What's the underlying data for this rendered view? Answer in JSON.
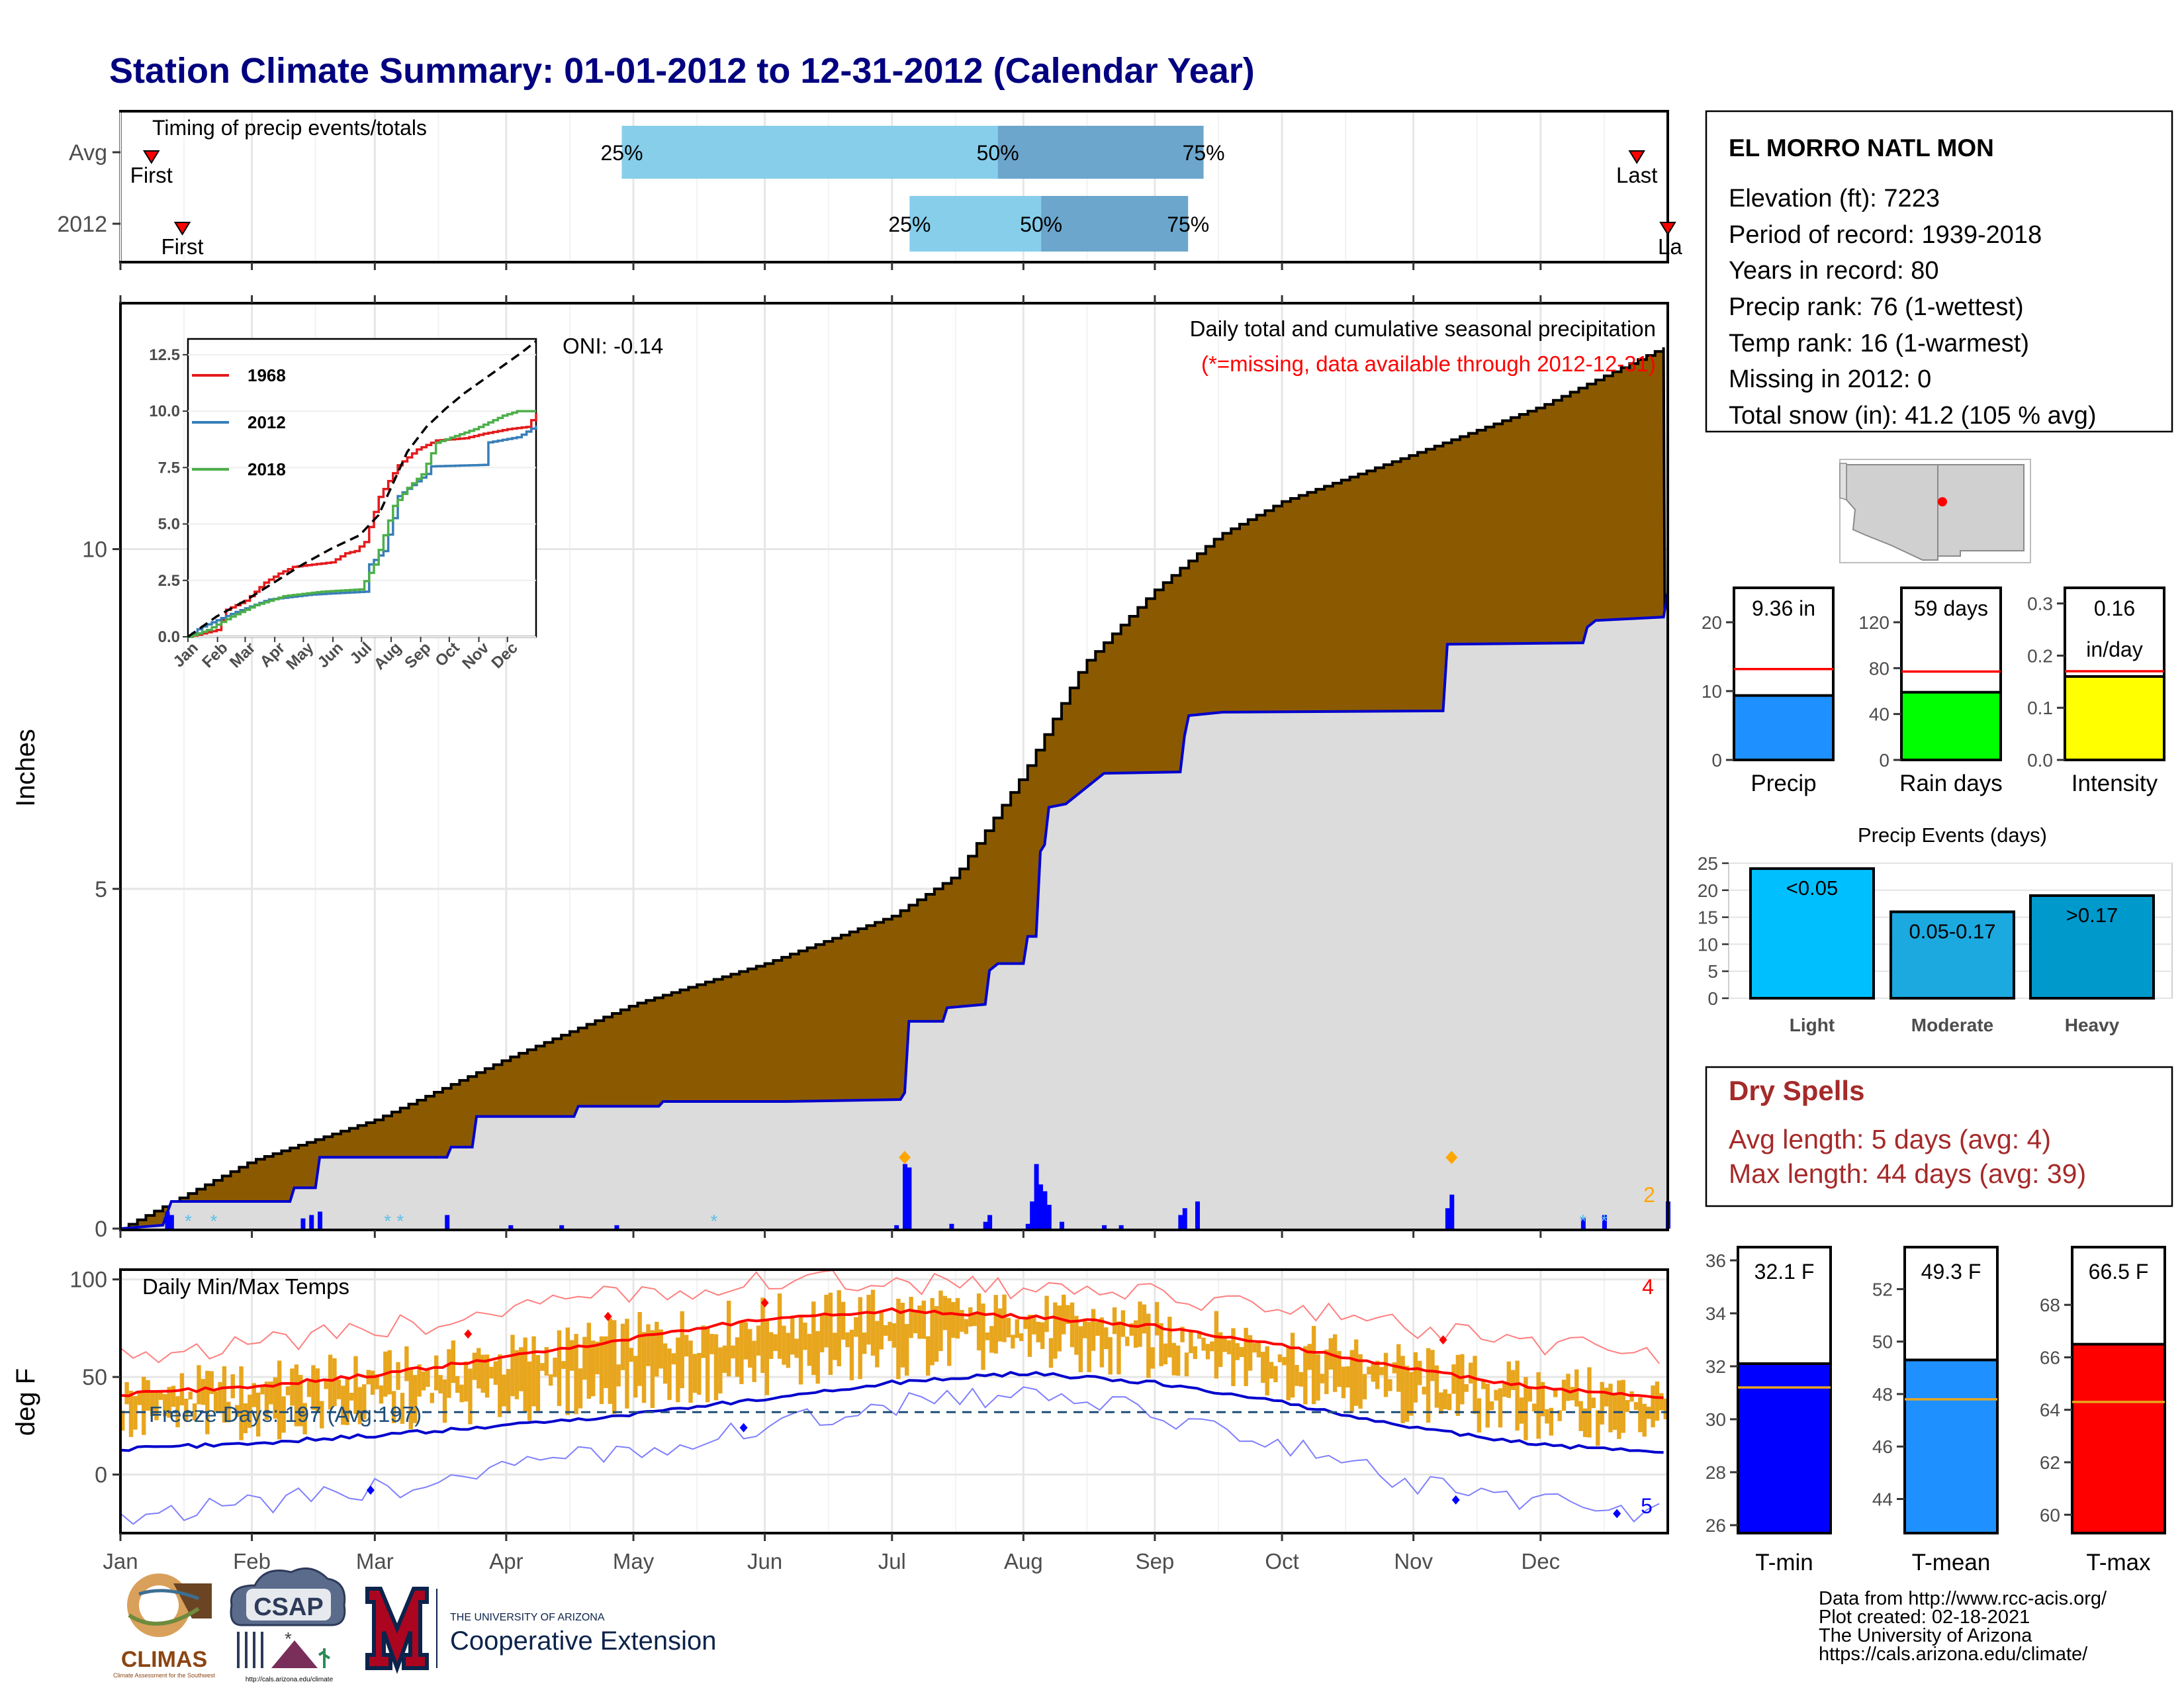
{
  "page": {
    "title": "Station Climate Summary: 01-01-2012 to 12-31-2012 (Calendar Year)",
    "months": [
      "Jan",
      "Feb",
      "Mar",
      "Apr",
      "May",
      "Jun",
      "Jul",
      "Aug",
      "Sep",
      "Oct",
      "Nov",
      "Dec"
    ],
    "colors": {
      "title": "#000080",
      "precip_fill": "#8B5A00",
      "grey_fill": "#DCDCDC",
      "obs_line": "#0000CD",
      "temp_band": "#E8A61E",
      "dry_text": "#A52A2A"
    }
  },
  "station": {
    "name": "EL MORRO NATL MON",
    "lines": [
      "Elevation (ft): 7223",
      "Period of record: 1939-2018",
      "Years in record: 80",
      "Precip rank: 76 (1-wettest)",
      "Temp rank: 16 (1-warmest)",
      "Missing in 2012: 0",
      "Total snow (in): 41.2 (105 % avg)"
    ]
  },
  "dry_spells": {
    "title": "Dry Spells",
    "avg_line": "Avg length: 5 days (avg: 4)",
    "max_line": "Max length: 44 days (avg: 39)"
  },
  "footer": {
    "lines": [
      "Data from http://www.rcc-acis.org/",
      "Plot created: 02-18-2021",
      "The University of Arizona",
      "https://cals.arizona.edu/climate/"
    ],
    "logos": {
      "climas": "CLIMAS",
      "climas_sub": "Climate Assessment for the Southwest",
      "csap": "CSAP",
      "csap_url": "http://cals.arizona.edu/climate",
      "ua_small": "THE UNIVERSITY OF ARIZONA",
      "ua_big": "Cooperative Extension"
    }
  },
  "chart_data": [
    {
      "id": "timing",
      "type": "bar",
      "title": "Timing of precip events/totals",
      "rows": [
        {
          "label": "Avg",
          "p25": 0.324,
          "p50": 0.567,
          "p75": 0.7,
          "first": 0.02,
          "first_label": "First",
          "last": 0.98,
          "last_label": "Last"
        },
        {
          "label": "2012",
          "p25": 0.51,
          "p50": 0.595,
          "p75": 0.69,
          "first": 0.04,
          "first_label": "First",
          "last": 1.0,
          "last_label": "La"
        }
      ],
      "pct_labels": [
        "25%",
        "50%",
        "75%"
      ]
    },
    {
      "id": "precip",
      "type": "area",
      "title": "Daily total and cumulative seasonal precipitation",
      "note": "(*=missing, data available through 2012-12-31)",
      "oni": "ONI: -0.14",
      "ylabel": "Inches",
      "ylim": [
        0,
        13.6
      ],
      "yticks": [
        0,
        5,
        10
      ],
      "avg_cumulative": [
        [
          0,
          0
        ],
        [
          31,
          1.0
        ],
        [
          60,
          1.6
        ],
        [
          91,
          2.5
        ],
        [
          121,
          3.3
        ],
        [
          152,
          3.9
        ],
        [
          182,
          4.6
        ],
        [
          197,
          5.2
        ],
        [
          213,
          6.7
        ],
        [
          227,
          8.3
        ],
        [
          244,
          9.4
        ],
        [
          259,
          10.2
        ],
        [
          274,
          10.7
        ],
        [
          305,
          11.4
        ],
        [
          335,
          12.1
        ],
        [
          365,
          13.0
        ]
      ],
      "obs_cumulative": [
        [
          0,
          0
        ],
        [
          10,
          0.05
        ],
        [
          12,
          0.4
        ],
        [
          40,
          0.4
        ],
        [
          41,
          0.6
        ],
        [
          46,
          0.6
        ],
        [
          47,
          1.05
        ],
        [
          77,
          1.05
        ],
        [
          78,
          1.2
        ],
        [
          83,
          1.2
        ],
        [
          84,
          1.65
        ],
        [
          107,
          1.65
        ],
        [
          108,
          1.8
        ],
        [
          127,
          1.8
        ],
        [
          128,
          1.87
        ],
        [
          157,
          1.87
        ],
        [
          184,
          1.9
        ],
        [
          185,
          2.0
        ],
        [
          186,
          3.05
        ],
        [
          194,
          3.05
        ],
        [
          195,
          3.25
        ],
        [
          204,
          3.3
        ],
        [
          205,
          3.8
        ],
        [
          207,
          3.9
        ],
        [
          213,
          3.9
        ],
        [
          214,
          4.3
        ],
        [
          216,
          4.3
        ],
        [
          217,
          5.55
        ],
        [
          218,
          5.65
        ],
        [
          219,
          6.2
        ],
        [
          223,
          6.25
        ],
        [
          232,
          6.7
        ],
        [
          250,
          6.72
        ],
        [
          251,
          7.25
        ],
        [
          252,
          7.55
        ],
        [
          260,
          7.6
        ],
        [
          312,
          7.62
        ],
        [
          313,
          8.6
        ],
        [
          345,
          8.62
        ],
        [
          346,
          8.85
        ],
        [
          348,
          8.95
        ],
        [
          364,
          9.0
        ],
        [
          365,
          9.36
        ]
      ],
      "daily_bars": [
        [
          11,
          0.25
        ],
        [
          12,
          0.2
        ],
        [
          43,
          0.15
        ],
        [
          45,
          0.2
        ],
        [
          47,
          0.25
        ],
        [
          77,
          0.2
        ],
        [
          92,
          0.05
        ],
        [
          104,
          0.05
        ],
        [
          117,
          0.05
        ],
        [
          183,
          0.05
        ],
        [
          185,
          0.95
        ],
        [
          186,
          0.9
        ],
        [
          196,
          0.07
        ],
        [
          204,
          0.1
        ],
        [
          205,
          0.2
        ],
        [
          214,
          0.07
        ],
        [
          215,
          0.4
        ],
        [
          216,
          0.95
        ],
        [
          217,
          0.65
        ],
        [
          218,
          0.55
        ],
        [
          219,
          0.35
        ],
        [
          222,
          0.1
        ],
        [
          232,
          0.05
        ],
        [
          236,
          0.05
        ],
        [
          250,
          0.2
        ],
        [
          251,
          0.3
        ],
        [
          254,
          0.4
        ],
        [
          313,
          0.3
        ],
        [
          314,
          0.5
        ],
        [
          345,
          0.15
        ],
        [
          350,
          0.2
        ],
        [
          365,
          0.4
        ]
      ],
      "markers": [
        {
          "day": 185,
          "label": "",
          "color": "#FFA500"
        },
        {
          "day": 314,
          "label": "",
          "color": "#FFA500"
        }
      ],
      "count_label": "2"
    },
    {
      "id": "inset",
      "type": "line",
      "xlabels": [
        "Jan",
        "Feb",
        "Mar",
        "Apr",
        "May",
        "Jun",
        "Jul",
        "Aug",
        "Sep",
        "Oct",
        "Nov",
        "Dec"
      ],
      "yticks": [
        "0.0",
        "2.5",
        "5.0",
        "7.5",
        "10.0",
        "12.5"
      ],
      "ylim": [
        0,
        13.2
      ],
      "series": [
        {
          "name": "1968",
          "color": "#E41A1C",
          "points": [
            [
              0,
              0
            ],
            [
              30,
              0.3
            ],
            [
              40,
              1.2
            ],
            [
              60,
              1.6
            ],
            [
              80,
              2.4
            ],
            [
              95,
              2.8
            ],
            [
              110,
              3.1
            ],
            [
              130,
              3.2
            ],
            [
              150,
              3.3
            ],
            [
              165,
              3.7
            ],
            [
              175,
              3.8
            ],
            [
              185,
              4.2
            ],
            [
              200,
              6.2
            ],
            [
              220,
              7.6
            ],
            [
              240,
              8.3
            ],
            [
              260,
              8.7
            ],
            [
              290,
              8.8
            ],
            [
              310,
              9.0
            ],
            [
              335,
              9.2
            ],
            [
              355,
              9.3
            ],
            [
              365,
              9.9
            ]
          ]
        },
        {
          "name": "2012",
          "color": "#377EB8",
          "points": [
            [
              0,
              0
            ],
            [
              12,
              0.4
            ],
            [
              47,
              1.05
            ],
            [
              84,
              1.65
            ],
            [
              128,
              1.87
            ],
            [
              185,
              2.0
            ],
            [
              186,
              3.05
            ],
            [
              205,
              3.8
            ],
            [
              217,
              5.55
            ],
            [
              219,
              6.2
            ],
            [
              251,
              7.25
            ],
            [
              252,
              7.55
            ],
            [
              312,
              7.62
            ],
            [
              313,
              8.6
            ],
            [
              346,
              8.85
            ],
            [
              365,
              9.36
            ]
          ]
        },
        {
          "name": "2018",
          "color": "#4DAF4A",
          "points": [
            [
              0,
              0
            ],
            [
              20,
              0.3
            ],
            [
              45,
              0.9
            ],
            [
              70,
              1.4
            ],
            [
              100,
              1.8
            ],
            [
              140,
              2.0
            ],
            [
              180,
              2.1
            ],
            [
              195,
              3.2
            ],
            [
              215,
              5.8
            ],
            [
              230,
              6.6
            ],
            [
              245,
              7.2
            ],
            [
              260,
              8.6
            ],
            [
              280,
              8.9
            ],
            [
              300,
              9.2
            ],
            [
              330,
              9.8
            ],
            [
              345,
              10.0
            ],
            [
              365,
              10.0
            ]
          ]
        },
        {
          "name": "",
          "color": "#000000",
          "points": [
            [
              0,
              0
            ],
            [
              30,
              0.9
            ],
            [
              60,
              1.6
            ],
            [
              90,
              2.4
            ],
            [
              120,
              3.2
            ],
            [
              150,
              3.9
            ],
            [
              180,
              4.5
            ],
            [
              200,
              5.4
            ],
            [
              215,
              6.8
            ],
            [
              230,
              8.2
            ],
            [
              250,
              9.3
            ],
            [
              270,
              10.1
            ],
            [
              290,
              10.8
            ],
            [
              310,
              11.4
            ],
            [
              330,
              12.0
            ],
            [
              350,
              12.6
            ],
            [
              365,
              13.1
            ]
          ]
        }
      ]
    },
    {
      "id": "temps",
      "type": "line",
      "title": "Daily Min/Max Temps",
      "ylabel": "deg F",
      "ylim": [
        -30,
        105
      ],
      "yticks": [
        0,
        50,
        100
      ],
      "freeze_label": "Freeze Days: 197 (Avg:197)",
      "freeze_temp": 32,
      "avg_max": [
        [
          0,
          41
        ],
        [
          30,
          45
        ],
        [
          60,
          51
        ],
        [
          91,
          60
        ],
        [
          121,
          70
        ],
        [
          152,
          80
        ],
        [
          182,
          84
        ],
        [
          213,
          81
        ],
        [
          244,
          76
        ],
        [
          274,
          66
        ],
        [
          305,
          54
        ],
        [
          335,
          44
        ],
        [
          365,
          40
        ]
      ],
      "avg_min": [
        [
          0,
          13
        ],
        [
          30,
          16
        ],
        [
          60,
          20
        ],
        [
          91,
          25
        ],
        [
          121,
          31
        ],
        [
          152,
          39
        ],
        [
          182,
          47
        ],
        [
          213,
          52
        ],
        [
          244,
          47
        ],
        [
          274,
          37
        ],
        [
          305,
          24
        ],
        [
          335,
          15
        ],
        [
          365,
          12
        ]
      ],
      "rec_max": [
        [
          0,
          62
        ],
        [
          30,
          66
        ],
        [
          60,
          74
        ],
        [
          91,
          84
        ],
        [
          121,
          93
        ],
        [
          152,
          99
        ],
        [
          182,
          99
        ],
        [
          213,
          95
        ],
        [
          244,
          92
        ],
        [
          274,
          87
        ],
        [
          305,
          75
        ],
        [
          335,
          66
        ],
        [
          365,
          62
        ]
      ],
      "rec_min": [
        [
          0,
          -20
        ],
        [
          30,
          -16
        ],
        [
          60,
          -8
        ],
        [
          91,
          3
        ],
        [
          121,
          13
        ],
        [
          152,
          24
        ],
        [
          182,
          36
        ],
        [
          213,
          41
        ],
        [
          244,
          32
        ],
        [
          274,
          16
        ],
        [
          305,
          -5
        ],
        [
          335,
          -15
        ],
        [
          365,
          -20
        ]
      ],
      "max_count_label": "4",
      "min_count_label": "5"
    },
    {
      "id": "precip_bars",
      "type": "bar",
      "panels": [
        {
          "label": "Precip",
          "value_label": "9.36 in",
          "value": 9.36,
          "avg": 13.2,
          "ylim": [
            0,
            25
          ],
          "ticks": [
            0,
            10,
            20
          ],
          "color": "#1E90FF"
        },
        {
          "label": "Rain days",
          "value_label": "59 days",
          "value": 59,
          "avg": 77,
          "ylim": [
            0,
            150
          ],
          "ticks": [
            0,
            40,
            80,
            120
          ],
          "color": "#00FF00"
        },
        {
          "label": "Intensity",
          "value_label": "0.16",
          "value_label2": "in/day",
          "value": 0.16,
          "avg": 0.17,
          "ylim": [
            0,
            0.33
          ],
          "ticks": [
            "0.0",
            "0.1",
            "0.2",
            "0.3"
          ],
          "color": "#FFFF00"
        }
      ]
    },
    {
      "id": "events",
      "type": "bar",
      "title": "Precip Events (days)",
      "categories": [
        "Light",
        "Moderate",
        "Heavy"
      ],
      "labels": [
        "<0.05",
        "0.05-0.17",
        ">0.17"
      ],
      "values": [
        24,
        16,
        19
      ],
      "ylim": [
        0,
        25
      ],
      "yticks": [
        0,
        5,
        10,
        15,
        20,
        25
      ],
      "colors": [
        "#00BFFF",
        "#1CA9E0",
        "#0099CC"
      ]
    },
    {
      "id": "temp_bars",
      "type": "bar",
      "panels": [
        {
          "label": "T-min",
          "value_label": "32.1 F",
          "value": 32.1,
          "avg": 31.2,
          "ylim": [
            25.7,
            36.5
          ],
          "ticks": [
            26,
            28,
            30,
            32,
            34,
            36
          ],
          "color": "#0000FF"
        },
        {
          "label": "T-mean",
          "value_label": "49.3 F",
          "value": 49.3,
          "avg": 47.8,
          "ylim": [
            42.7,
            53.6
          ],
          "ticks": [
            44,
            46,
            48,
            50,
            52
          ],
          "color": "#1E90FF"
        },
        {
          "label": "T-max",
          "value_label": "66.5 F",
          "value": 66.5,
          "avg": 64.3,
          "ylim": [
            59.3,
            70.2
          ],
          "ticks": [
            60,
            62,
            64,
            66,
            68
          ],
          "color": "#FF0000"
        }
      ]
    }
  ]
}
